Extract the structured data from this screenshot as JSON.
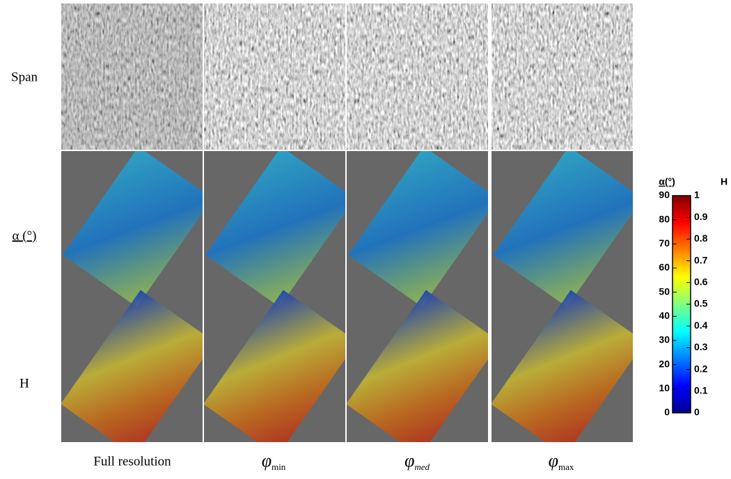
{
  "rows": [
    "Span",
    "α (°)",
    "H"
  ],
  "columns": [
    {
      "label": "Full resolution"
    },
    {
      "symbol": "φ",
      "subscript": "min"
    },
    {
      "symbol": "φ",
      "subscript": "med"
    },
    {
      "symbol": "φ",
      "subscript": "max"
    }
  ],
  "colorbar": {
    "left_title": "α(°)",
    "right_title": "H",
    "left_ticks": [
      0,
      10,
      20,
      30,
      40,
      50,
      60,
      70,
      80,
      90
    ],
    "right_ticks": [
      0,
      0.1,
      0.2,
      0.3,
      0.4,
      0.5,
      0.6,
      0.7,
      0.8,
      0.9,
      1
    ]
  }
}
